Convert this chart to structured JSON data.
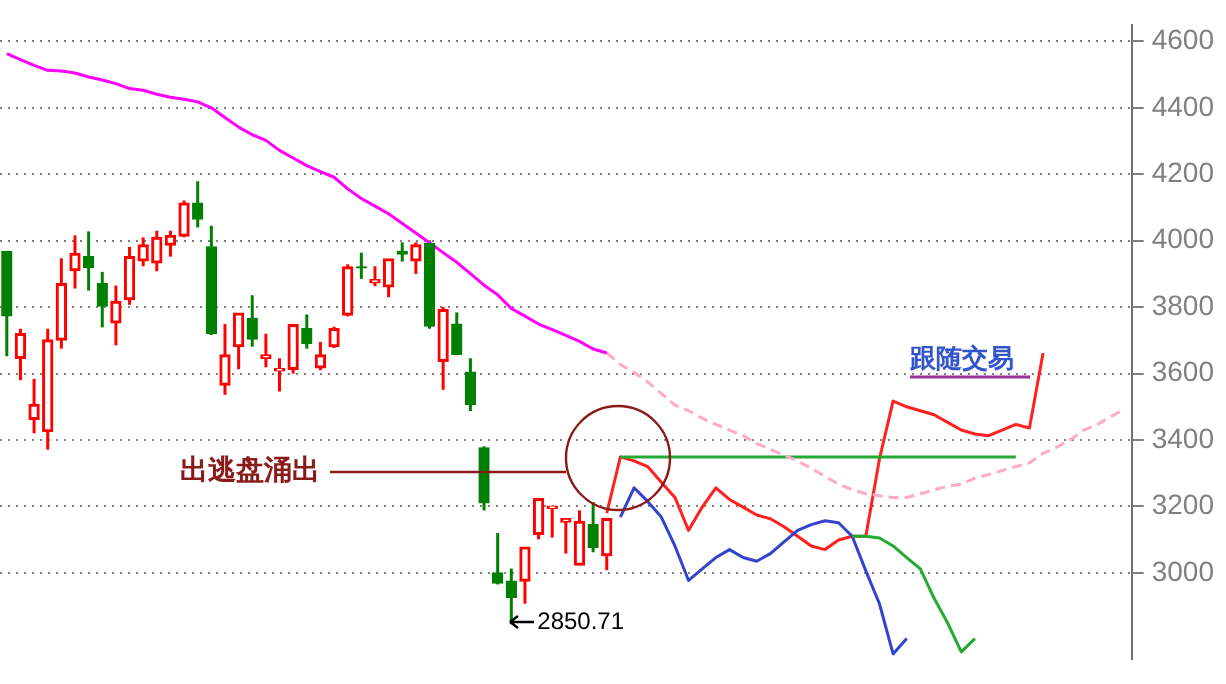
{
  "chart_data": {
    "type": "candlestick",
    "categories": [
      null,
      null,
      null,
      null,
      null,
      null,
      null,
      null,
      null,
      null,
      null,
      null,
      null,
      null,
      null,
      null,
      null,
      null,
      null,
      null,
      null,
      null,
      null,
      null,
      null,
      null,
      null,
      null,
      null,
      null,
      null,
      null,
      null,
      null,
      null,
      null,
      null,
      null,
      null,
      null,
      null,
      null,
      null,
      null,
      null,
      null,
      null,
      null,
      null,
      null,
      null,
      null,
      null,
      null,
      null,
      null,
      null,
      null,
      null,
      null,
      null,
      null,
      null,
      null,
      null,
      null,
      null,
      null,
      null,
      null,
      null,
      null,
      null,
      null,
      null,
      null,
      null,
      null,
      null,
      null,
      null,
      null,
      null
    ],
    "ohlc": [
      [
        3968,
        3968,
        3652,
        3774
      ],
      [
        3646,
        3735,
        3580,
        3720
      ],
      [
        3462,
        3584,
        3420,
        3507
      ],
      [
        3425,
        3735,
        3371,
        3701
      ],
      [
        3701,
        3947,
        3675,
        3871
      ],
      [
        3910,
        4016,
        3856,
        3962
      ],
      [
        3952,
        4028,
        3850,
        3919
      ],
      [
        3871,
        3906,
        3739,
        3803
      ],
      [
        3753,
        3865,
        3685,
        3817
      ],
      [
        3823,
        3981,
        3807,
        3952
      ],
      [
        3939,
        4010,
        3923,
        3987
      ],
      [
        3933,
        4030,
        3908,
        4010
      ],
      [
        3987,
        4030,
        3952,
        4016
      ],
      [
        4014,
        4121,
        4010,
        4113
      ],
      [
        4113,
        4179,
        4040,
        4065
      ],
      [
        3981,
        4045,
        3716,
        3720
      ],
      [
        3565,
        3749,
        3536,
        3656
      ],
      [
        3681,
        3782,
        3613,
        3782
      ],
      [
        3766,
        3836,
        3681,
        3704
      ],
      [
        3646,
        3720,
        3619,
        3656
      ],
      [
        3608,
        3646,
        3546,
        3615
      ],
      [
        3613,
        3747,
        3600,
        3747
      ],
      [
        3735,
        3778,
        3675,
        3691
      ],
      [
        3617,
        3695,
        3610,
        3656
      ],
      [
        3681,
        3741,
        3677,
        3735
      ],
      [
        3776,
        3929,
        3772,
        3921
      ],
      [
        3921,
        3964,
        3885,
        3918
      ],
      [
        3873,
        3923,
        3863,
        3883
      ],
      [
        3861,
        3945,
        3830,
        3945
      ],
      [
        3968,
        3995,
        3937,
        3960
      ],
      [
        3939,
        3995,
        3900,
        3987
      ],
      [
        3991,
        4001,
        3735,
        3743
      ],
      [
        3637,
        3801,
        3551,
        3792
      ],
      [
        3749,
        3784,
        3658,
        3658
      ],
      [
        3604,
        3646,
        3487,
        3507
      ],
      [
        3376,
        3381,
        3188,
        3211
      ],
      [
        3000,
        3120,
        2965,
        2969
      ],
      [
        2975,
        3013,
        2850.71,
        2926
      ],
      [
        2975,
        3077,
        2907,
        3077
      ],
      [
        3116,
        3223,
        3101,
        3223
      ],
      [
        3194,
        3201,
        3106,
        3201
      ],
      [
        3153,
        3163,
        3058,
        3163
      ],
      [
        3023,
        3188,
        3023,
        3155
      ],
      [
        3145,
        3213,
        3062,
        3077
      ],
      [
        3052,
        3163,
        3008,
        3163
      ],
      null,
      null,
      null,
      null,
      null,
      null,
      null,
      null,
      null,
      null,
      null,
      null,
      null,
      null,
      null,
      null,
      null,
      null,
      null,
      null,
      null,
      null,
      null,
      null,
      null,
      null,
      null,
      null,
      null,
      null,
      null,
      null,
      null,
      null,
      null,
      null,
      null,
      null
    ],
    "colors": [
      "#008000",
      "#ff0000",
      "#ff0000",
      "#ff0000",
      "#ff0000",
      "#ff0000",
      "#008000",
      "#008000",
      "#ff0000",
      "#ff0000",
      "#ff0000",
      "#ff0000",
      "#ff0000",
      "#ff0000",
      "#008000",
      "#008000",
      "#ff0000",
      "#ff0000",
      "#008000",
      "#ff0000",
      "#ff0000",
      "#ff0000",
      "#008000",
      "#ff0000",
      "#ff0000",
      "#ff0000",
      "#008000",
      "#ff0000",
      "#ff0000",
      "#008000",
      "#ff0000",
      "#008000",
      "#ff0000",
      "#008000",
      "#008000",
      "#008000",
      "#008000",
      "#008000",
      "#ff0000",
      "#ff0000",
      "#ff0000",
      "#ff0000",
      "#ff0000",
      "#008000",
      "#ff0000",
      null,
      null,
      null,
      null,
      null,
      null,
      null,
      null,
      null,
      null,
      null,
      null,
      null,
      null,
      null,
      null,
      null,
      null,
      null,
      null,
      null,
      null,
      null,
      null,
      null,
      null,
      null,
      null,
      null,
      null,
      null,
      null,
      null,
      null,
      null,
      null,
      null,
      null
    ],
    "series": [
      {
        "type": "line",
        "color": "#ff00ff",
        "line_style": "solid",
        "values": [
          4563,
          4545,
          4528,
          4513,
          4511,
          4505,
          4493,
          4484,
          4473,
          4458,
          4453,
          4441,
          4432,
          4426,
          4418,
          4400,
          4371,
          4342,
          4319,
          4302,
          4272,
          4249,
          4226,
          4208,
          4191,
          4156,
          4127,
          4104,
          4081,
          4052,
          4023,
          3994,
          3964,
          3935,
          3901,
          3866,
          3837,
          3796,
          3773,
          3749,
          3732,
          3715,
          3697,
          3674,
          3662,
          null,
          null,
          null,
          null,
          null,
          null,
          null,
          null,
          null,
          null,
          null,
          null,
          null,
          null,
          null,
          null,
          null,
          null,
          null,
          null,
          null,
          null,
          null,
          null,
          null,
          null,
          null,
          null,
          null,
          null,
          null,
          null,
          null,
          null,
          null,
          null,
          null,
          null
        ]
      },
      {
        "type": "line",
        "color": "#ffaacc",
        "line_style": "dashed",
        "values": [
          null,
          null,
          null,
          null,
          null,
          null,
          null,
          null,
          null,
          null,
          null,
          null,
          null,
          null,
          null,
          null,
          null,
          null,
          null,
          null,
          null,
          null,
          null,
          null,
          null,
          null,
          null,
          null,
          null,
          null,
          null,
          null,
          null,
          null,
          null,
          null,
          null,
          null,
          null,
          null,
          null,
          null,
          null,
          null,
          3662,
          3627,
          3604,
          3575,
          3540,
          3505,
          3488,
          3465,
          3447,
          3430,
          3413,
          3389,
          3372,
          3354,
          3337,
          3314,
          3291,
          3267,
          3250,
          3238,
          3232,
          3227,
          3227,
          3238,
          3250,
          3261,
          3267,
          3285,
          3296,
          3308,
          3320,
          3331,
          3360,
          3378,
          3401,
          3430,
          3447,
          3471,
          3494
        ]
      },
      {
        "type": "line",
        "color": "#22aa33",
        "line_style": "solid",
        "values": [
          null,
          null,
          null,
          null,
          null,
          null,
          null,
          null,
          null,
          null,
          null,
          null,
          null,
          null,
          null,
          null,
          null,
          null,
          null,
          null,
          null,
          null,
          null,
          null,
          null,
          null,
          null,
          null,
          null,
          null,
          null,
          null,
          null,
          null,
          null,
          null,
          null,
          null,
          null,
          null,
          null,
          null,
          null,
          null,
          null,
          3349,
          3349,
          3349,
          3349,
          3349,
          3349,
          3349,
          3349,
          3349,
          3349,
          3349,
          3349,
          3349,
          3349,
          3349,
          3349,
          3349,
          3349,
          3349,
          3349,
          3349,
          3349,
          3349,
          3349,
          3349,
          3349,
          3349,
          3349,
          3349,
          3349,
          null,
          null,
          null,
          null,
          null,
          null,
          null,
          null
        ]
      },
      {
        "type": "line",
        "color": "#22aa33",
        "line_style": "solid",
        "values": [
          null,
          null,
          null,
          null,
          null,
          null,
          null,
          null,
          null,
          null,
          null,
          null,
          null,
          null,
          null,
          null,
          null,
          null,
          null,
          null,
          null,
          null,
          null,
          null,
          null,
          null,
          null,
          null,
          null,
          null,
          null,
          null,
          null,
          null,
          null,
          null,
          null,
          null,
          null,
          null,
          null,
          null,
          null,
          null,
          null,
          null,
          null,
          null,
          null,
          null,
          null,
          null,
          null,
          null,
          null,
          null,
          null,
          null,
          null,
          null,
          null,
          null,
          3110,
          3110,
          3105,
          3081,
          3046,
          3012,
          2924,
          2849,
          2762,
          2802,
          null,
          null,
          null,
          null,
          null,
          null,
          null,
          null,
          null,
          null,
          null
        ]
      },
      {
        "type": "line",
        "color": "#3344cc",
        "line_style": "solid",
        "values": [
          null,
          null,
          null,
          null,
          null,
          null,
          null,
          null,
          null,
          null,
          null,
          null,
          null,
          null,
          null,
          null,
          null,
          null,
          null,
          null,
          null,
          null,
          null,
          null,
          null,
          null,
          null,
          null,
          null,
          null,
          null,
          null,
          null,
          null,
          null,
          null,
          null,
          null,
          null,
          null,
          null,
          null,
          null,
          null,
          null,
          3168,
          3256,
          3215,
          3168,
          3081,
          2977,
          3012,
          3046,
          3070,
          3046,
          3035,
          3058,
          3093,
          3128,
          3145,
          3157,
          3151,
          3110,
          3006,
          2907,
          2756,
          2802,
          null,
          null,
          null,
          null,
          null,
          null,
          null,
          null,
          null,
          null,
          null,
          null,
          null,
          null,
          null,
          null
        ]
      },
      {
        "type": "line",
        "color": "#ff2020",
        "line_style": "solid",
        "values": [
          null,
          null,
          null,
          null,
          null,
          null,
          null,
          null,
          null,
          null,
          null,
          null,
          null,
          null,
          null,
          null,
          null,
          null,
          null,
          null,
          null,
          null,
          null,
          null,
          null,
          null,
          null,
          null,
          null,
          null,
          null,
          null,
          null,
          null,
          null,
          null,
          null,
          null,
          null,
          null,
          null,
          null,
          null,
          null,
          3180,
          3349,
          3337,
          3320,
          3273,
          3227,
          3128,
          3198,
          3256,
          3221,
          3198,
          3174,
          3163,
          3139,
          3110,
          3081,
          3070,
          3099,
          3110,
          3110,
          3343,
          3517,
          3500,
          3488,
          3476,
          3453,
          3430,
          3418,
          3413,
          3430,
          3447,
          3436,
          3662,
          null,
          null,
          null,
          null,
          null,
          null
        ]
      }
    ],
    "ylim": [
      2740,
      4650
    ],
    "yticks": [
      3000,
      3200,
      3400,
      3600,
      3800,
      4000,
      4200,
      4400,
      4600
    ],
    "grid": "y",
    "legend": false,
    "marker": "none",
    "tick_labels": "y",
    "annotations": [
      "出逃盘涌出",
      "2850.71",
      "跟随交易"
    ]
  }
}
